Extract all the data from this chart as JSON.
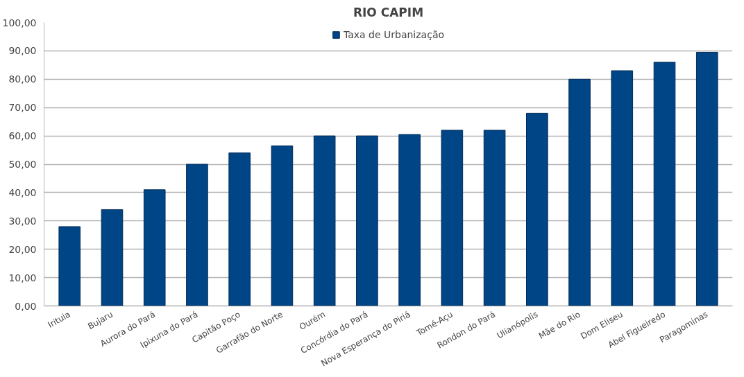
{
  "chart_data": {
    "type": "bar",
    "title": "RIO CAPIM",
    "categories": [
      "Irituia",
      "Bujaru",
      "Aurora do Pará",
      "Ipixuna do Pará",
      "Capitão Poço",
      "Garrafão do Norte",
      "Ourém",
      "Concórdia do Pará",
      "Nova Esperança do Piriá",
      "Tomé-Açu",
      "Rondon do Pará",
      "Ulianópolis",
      "Mãe do Rio",
      "Dom Eliseu",
      "Abel Figueiredo",
      "Paragominas"
    ],
    "series": [
      {
        "name": "Taxa de Urbanização",
        "color": "#004586",
        "values": [
          28,
          34,
          41,
          50,
          54,
          56.5,
          60,
          60,
          60.5,
          62,
          62,
          68,
          80,
          83,
          86,
          89.5
        ]
      }
    ],
    "ylim": [
      0,
      100
    ],
    "yticks": [
      {
        "value": 0,
        "label": "0,00"
      },
      {
        "value": 10,
        "label": "10,00"
      },
      {
        "value": 20,
        "label": "20,00"
      },
      {
        "value": 30,
        "label": "30,00"
      },
      {
        "value": 40,
        "label": "40,00"
      },
      {
        "value": 50,
        "label": "50,00"
      },
      {
        "value": 60,
        "label": "60,00"
      },
      {
        "value": 70,
        "label": "70,00"
      },
      {
        "value": 80,
        "label": "80,00"
      },
      {
        "value": 90,
        "label": "90,00"
      },
      {
        "value": 100,
        "label": "100,00"
      }
    ],
    "grid": "y",
    "legend": "top"
  }
}
